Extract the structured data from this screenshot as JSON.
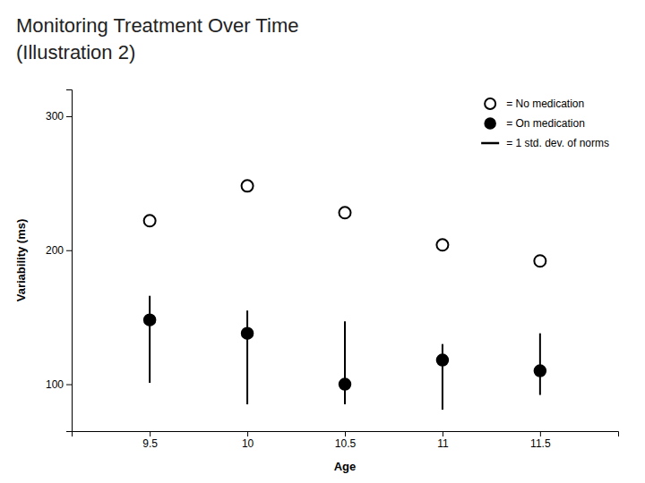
{
  "chart_data": {
    "type": "scatter",
    "title": "Monitoring Treatment Over Time",
    "subtitle": "(Illustration 2)",
    "xlabel": "Age",
    "ylabel": "Variability (ms)",
    "x": [
      9.5,
      10.0,
      10.5,
      11.0,
      11.5
    ],
    "series": [
      {
        "name": "= No medication",
        "color": "#000000",
        "marker": "open-circle",
        "values": [
          222,
          248,
          228,
          204,
          192
        ]
      },
      {
        "name": "= On medication",
        "color": "#000000",
        "marker": "circle",
        "values": [
          148,
          138,
          100,
          118,
          110
        ],
        "error_low": [
          47,
          53,
          15,
          37,
          18
        ],
        "error_high": [
          18,
          17,
          47,
          12,
          28
        ],
        "error_name": "= 1 std. dev. of norms"
      }
    ],
    "xlim": [
      9.1,
      11.9
    ],
    "ylim": [
      65,
      320
    ],
    "xticks": [
      9.5,
      10,
      10.5,
      11,
      11.5
    ],
    "yticks": [
      100,
      200,
      300
    ],
    "grid": false,
    "legend": "upper right"
  }
}
